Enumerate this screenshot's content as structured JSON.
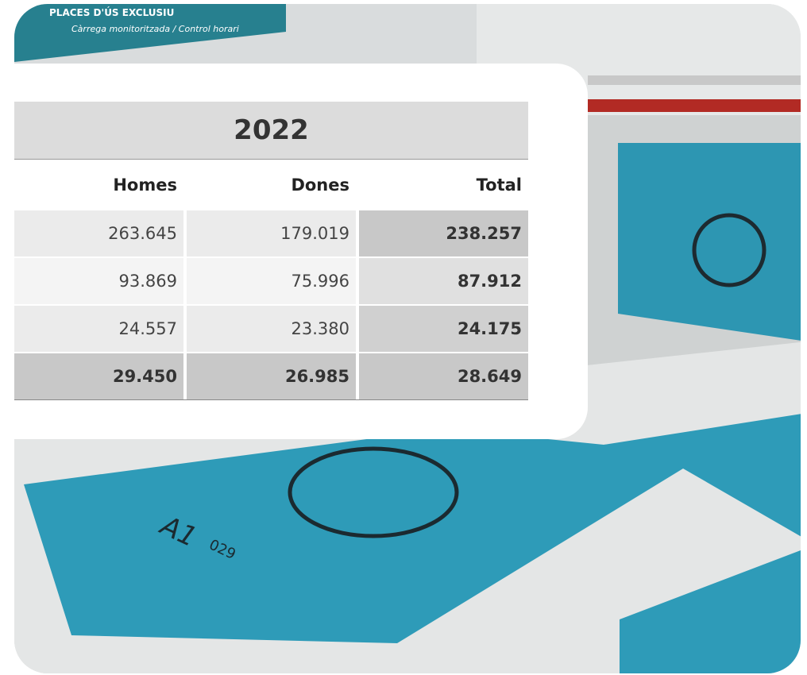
{
  "sign": {
    "title": "PLACES D'ÚS EXCLUSIU",
    "subtitle": "Càrrega monitoritzada / Control horari"
  },
  "floor": {
    "code": "A1",
    "number": "029"
  },
  "table": {
    "title": "2022",
    "columns": [
      "Homes",
      "Dones",
      "Total"
    ],
    "rows": [
      [
        "263.645",
        "179.019",
        "238.257"
      ],
      [
        "93.869",
        "75.996",
        "87.912"
      ],
      [
        "24.557",
        "23.380",
        "24.175"
      ],
      [
        "29.450",
        "26.985",
        "28.649"
      ]
    ]
  }
}
